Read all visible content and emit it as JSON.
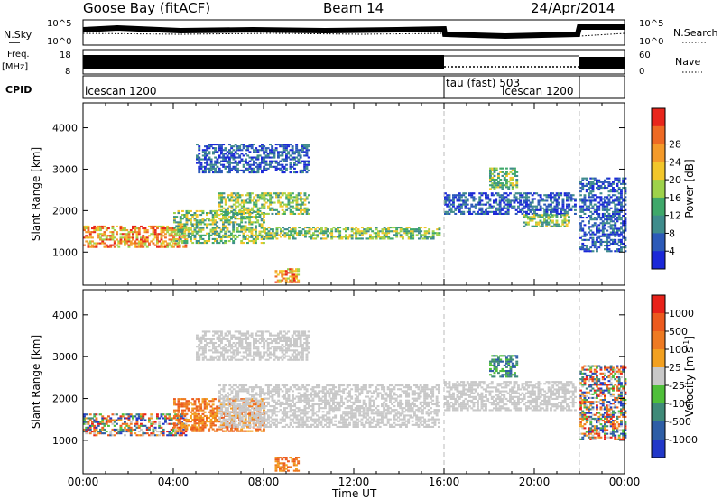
{
  "header": {
    "station": "Goose Bay (fitACF)",
    "beam": "Beam 14",
    "date": "24/Apr/2014"
  },
  "strip_top": {
    "left_label": "N.Sky",
    "right_label": "N.Search",
    "left_ticks": [
      "10^5",
      "10^0"
    ],
    "right_ticks": [
      "10^5",
      "10^0"
    ]
  },
  "strip_freq": {
    "left_label_1": "Freq.",
    "left_label_2": "[MHz]",
    "right_label": "Nave",
    "left_ticks": [
      "18",
      "8"
    ],
    "right_ticks": [
      "60",
      "0"
    ]
  },
  "cpid": {
    "label": "CPID",
    "segments": [
      "icescan 1200",
      "tau (fast) 503",
      "icescan 1200"
    ]
  },
  "chart_data": [
    {
      "type": "heatmap",
      "title": "Power",
      "ylabel": "Slant Range [km]",
      "xlabel": "Time UT",
      "x_ticks": [
        "00:00",
        "04:00",
        "08:00",
        "12:00",
        "16:00",
        "20:00",
        "00:00"
      ],
      "y_ticks": [
        "1000",
        "2000",
        "3000",
        "4000"
      ],
      "ylim": [
        200,
        4600
      ],
      "colorbar": {
        "label": "Power [dB]",
        "ticks": [
          "4",
          "8",
          "12",
          "16",
          "20",
          "24",
          "28"
        ],
        "colors": [
          "#1b28d8",
          "#2c5ab8",
          "#3f8c8c",
          "#3fa86a",
          "#9ed24a",
          "#f2c62a",
          "#f49a2a",
          "#ee6a24",
          "#e8261c"
        ]
      },
      "mode_changes_ut_hours": [
        16.0,
        22.0
      ],
      "echo_regions": [
        {
          "t": [
            0.0,
            4.5
          ],
          "range_km": [
            1100,
            1600
          ],
          "level": "high"
        },
        {
          "t": [
            4.0,
            8.0
          ],
          "range_km": [
            1200,
            2000
          ],
          "level": "medium"
        },
        {
          "t": [
            6.0,
            10.0
          ],
          "range_km": [
            1900,
            2400
          ],
          "level": "medium"
        },
        {
          "t": [
            8.0,
            15.8
          ],
          "range_km": [
            1300,
            1600
          ],
          "level": "medium"
        },
        {
          "t": [
            5.0,
            10.0
          ],
          "range_km": [
            2900,
            3600
          ],
          "level": "low"
        },
        {
          "t": [
            8.5,
            9.5
          ],
          "range_km": [
            250,
            600
          ],
          "level": "high"
        },
        {
          "t": [
            16.0,
            21.8
          ],
          "range_km": [
            1900,
            2400
          ],
          "level": "low"
        },
        {
          "t": [
            18.0,
            19.2
          ],
          "range_km": [
            2500,
            3000
          ],
          "level": "medium"
        },
        {
          "t": [
            19.5,
            21.5
          ],
          "range_km": [
            1600,
            1900
          ],
          "level": "medium"
        },
        {
          "t": [
            22.0,
            24.0
          ],
          "range_km": [
            1000,
            2800
          ],
          "level": "low"
        }
      ]
    },
    {
      "type": "heatmap",
      "title": "Velocity",
      "ylabel": "Slant Range [km]",
      "xlabel": "Time UT",
      "x_ticks": [
        "00:00",
        "04:00",
        "08:00",
        "12:00",
        "16:00",
        "20:00",
        "00:00"
      ],
      "y_ticks": [
        "1000",
        "2000",
        "3000",
        "4000"
      ],
      "ylim": [
        200,
        4600
      ],
      "colorbar": {
        "label": "Velocity [m s^-1]",
        "ticks": [
          "1000",
          "500",
          "100",
          "25",
          "-25",
          "-100",
          "-500",
          "-1000"
        ],
        "colors": [
          "#2238c8",
          "#2e5ea6",
          "#3f8a78",
          "#4fbf3a",
          "#c8c8c8",
          "#f2a020",
          "#ee7a22",
          "#ec5a1e",
          "#e8221a"
        ]
      },
      "mode_changes_ut_hours": [
        16.0,
        22.0
      ],
      "echo_regions": [
        {
          "t": [
            0.0,
            4.5
          ],
          "range_km": [
            1100,
            1600
          ],
          "level": "mixed"
        },
        {
          "t": [
            4.0,
            8.0
          ],
          "range_km": [
            1200,
            2000
          ],
          "level": "away"
        },
        {
          "t": [
            6.0,
            15.8
          ],
          "range_km": [
            1300,
            2300
          ],
          "level": "near-zero"
        },
        {
          "t": [
            5.0,
            10.0
          ],
          "range_km": [
            2900,
            3600
          ],
          "level": "near-zero"
        },
        {
          "t": [
            8.5,
            9.5
          ],
          "range_km": [
            250,
            600
          ],
          "level": "away"
        },
        {
          "t": [
            16.0,
            21.8
          ],
          "range_km": [
            1700,
            2400
          ],
          "level": "near-zero"
        },
        {
          "t": [
            18.0,
            19.2
          ],
          "range_km": [
            2500,
            3000
          ],
          "level": "toward"
        },
        {
          "t": [
            22.0,
            24.0
          ],
          "range_km": [
            1000,
            2800
          ],
          "level": "mixed"
        }
      ]
    }
  ]
}
